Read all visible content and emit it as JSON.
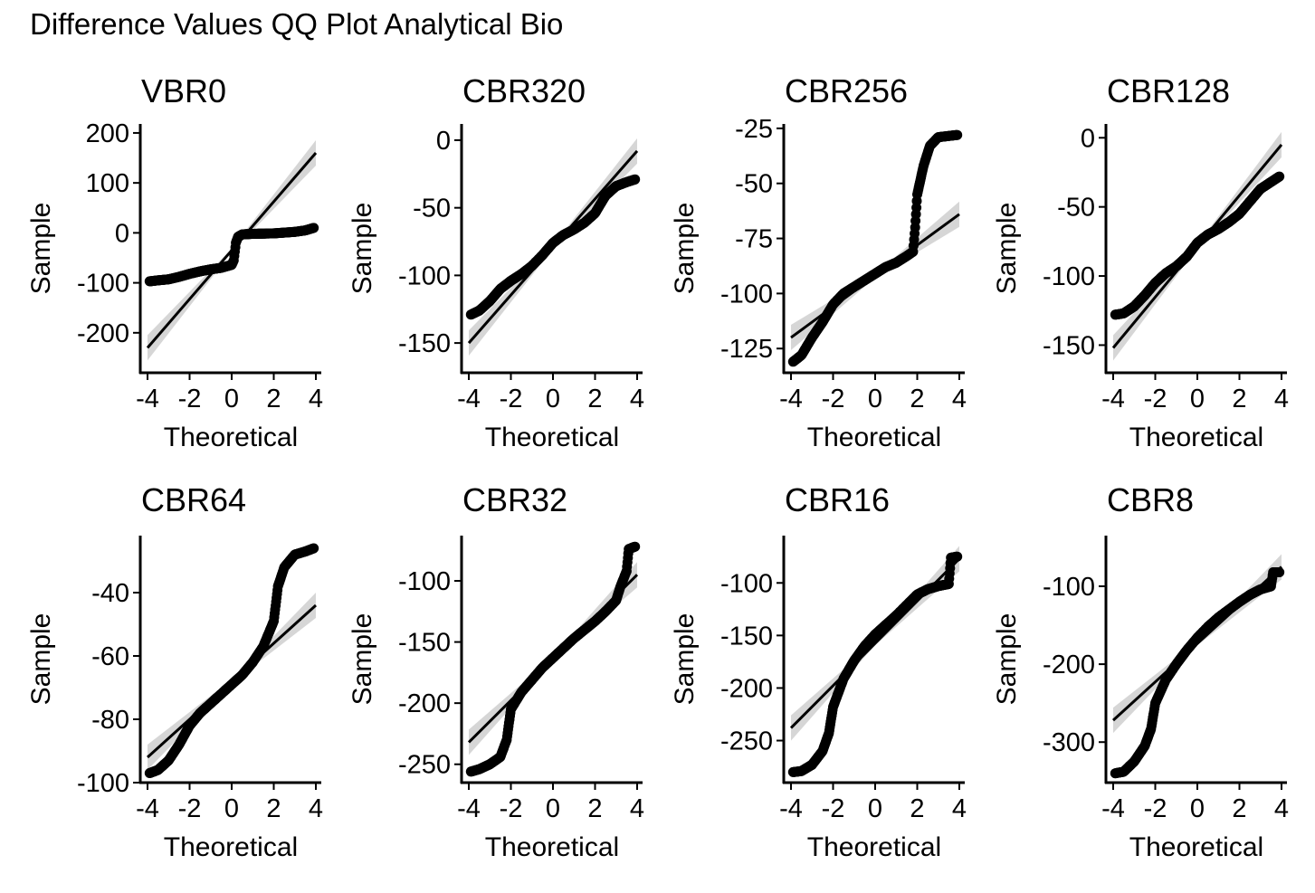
{
  "figure": {
    "title": "Difference Values QQ Plot Analytical Bio"
  },
  "chart_data": [
    {
      "type": "scatter",
      "title": "VBR0",
      "xlabel": "Theoretical",
      "ylabel": "Sample",
      "xlim": [
        -4,
        4
      ],
      "ylim": [
        -280,
        218
      ],
      "xticks": [
        -4,
        -2,
        0,
        2,
        4
      ],
      "yticks": [
        -200,
        -100,
        0,
        100,
        200
      ],
      "reference_line": {
        "x": [
          -4,
          4
        ],
        "y": [
          -230,
          160
        ]
      },
      "points": [
        [
          -3.9,
          -97
        ],
        [
          -3.5,
          -95
        ],
        [
          -3,
          -93
        ],
        [
          -2.5,
          -88
        ],
        [
          -2,
          -82
        ],
        [
          -1.5,
          -77
        ],
        [
          -1,
          -73
        ],
        [
          -0.5,
          -70
        ],
        [
          0,
          -64
        ],
        [
          0.1,
          -55
        ],
        [
          0.2,
          -20
        ],
        [
          0.3,
          -8
        ],
        [
          0.5,
          -3
        ],
        [
          1,
          -2
        ],
        [
          2,
          -1
        ],
        [
          3,
          2
        ],
        [
          3.5,
          5
        ],
        [
          3.9,
          10
        ]
      ],
      "grid": false,
      "legend": "none"
    },
    {
      "type": "scatter",
      "title": "CBR320",
      "xlabel": "Theoretical",
      "ylabel": "Sample",
      "xlim": [
        -4,
        4
      ],
      "ylim": [
        -172,
        12
      ],
      "xticks": [
        -4,
        -2,
        0,
        2,
        4
      ],
      "yticks": [
        -150,
        -100,
        -50,
        0
      ],
      "reference_line": {
        "x": [
          -4,
          4
        ],
        "y": [
          -150,
          -8
        ]
      },
      "points": [
        [
          -3.9,
          -129
        ],
        [
          -3.5,
          -126
        ],
        [
          -3,
          -119
        ],
        [
          -2.5,
          -110
        ],
        [
          -2,
          -104
        ],
        [
          -1.5,
          -99
        ],
        [
          -1,
          -93
        ],
        [
          -0.5,
          -85
        ],
        [
          0,
          -76
        ],
        [
          0.5,
          -70
        ],
        [
          1,
          -66
        ],
        [
          1.5,
          -61
        ],
        [
          2,
          -54
        ],
        [
          2.5,
          -41
        ],
        [
          3,
          -34
        ],
        [
          3.5,
          -31
        ],
        [
          3.9,
          -29
        ]
      ],
      "grid": false,
      "legend": "none"
    },
    {
      "type": "scatter",
      "title": "CBR256",
      "xlabel": "Theoretical",
      "ylabel": "Sample",
      "xlim": [
        -4,
        4
      ],
      "ylim": [
        -136,
        -23
      ],
      "xticks": [
        -4,
        -2,
        0,
        2,
        4
      ],
      "yticks": [
        -125,
        -100,
        -75,
        -50,
        -25
      ],
      "reference_line": {
        "x": [
          -4,
          4
        ],
        "y": [
          -120,
          -64
        ]
      },
      "points": [
        [
          -3.9,
          -131
        ],
        [
          -3.5,
          -128
        ],
        [
          -3,
          -120
        ],
        [
          -2.5,
          -113
        ],
        [
          -2,
          -105
        ],
        [
          -1.5,
          -100
        ],
        [
          -1,
          -97
        ],
        [
          -0.5,
          -94
        ],
        [
          0,
          -91
        ],
        [
          0.5,
          -88
        ],
        [
          1,
          -86
        ],
        [
          1.5,
          -83
        ],
        [
          1.8,
          -81
        ],
        [
          1.9,
          -70
        ],
        [
          2,
          -55
        ],
        [
          2.3,
          -42
        ],
        [
          2.6,
          -33
        ],
        [
          3,
          -29
        ],
        [
          3.9,
          -28
        ]
      ],
      "grid": false,
      "legend": "none"
    },
    {
      "type": "scatter",
      "title": "CBR128",
      "xlabel": "Theoretical",
      "ylabel": "Sample",
      "xlim": [
        -4,
        4
      ],
      "ylim": [
        -170,
        10
      ],
      "xticks": [
        -4,
        -2,
        0,
        2,
        4
      ],
      "yticks": [
        -150,
        -100,
        -50,
        0
      ],
      "reference_line": {
        "x": [
          -4,
          4
        ],
        "y": [
          -152,
          -5
        ]
      },
      "points": [
        [
          -3.9,
          -128
        ],
        [
          -3.5,
          -127
        ],
        [
          -3,
          -122
        ],
        [
          -2.5,
          -114
        ],
        [
          -2,
          -105
        ],
        [
          -1.5,
          -98
        ],
        [
          -1,
          -93
        ],
        [
          -0.5,
          -86
        ],
        [
          0,
          -76
        ],
        [
          0.5,
          -70
        ],
        [
          1,
          -66
        ],
        [
          1.5,
          -61
        ],
        [
          2,
          -55
        ],
        [
          2.5,
          -46
        ],
        [
          3,
          -37
        ],
        [
          3.5,
          -32
        ],
        [
          3.9,
          -28
        ]
      ],
      "grid": false,
      "legend": "none"
    },
    {
      "type": "scatter",
      "title": "CBR64",
      "xlabel": "Theoretical",
      "ylabel": "Sample",
      "xlim": [
        -4,
        4
      ],
      "ylim": [
        -100,
        -22
      ],
      "xticks": [
        -4,
        -2,
        0,
        2,
        4
      ],
      "yticks": [
        -100,
        -80,
        -60,
        -40
      ],
      "reference_line": {
        "x": [
          -4,
          4
        ],
        "y": [
          -92,
          -44
        ]
      },
      "points": [
        [
          -3.9,
          -97
        ],
        [
          -3.5,
          -96
        ],
        [
          -3,
          -93
        ],
        [
          -2.5,
          -88
        ],
        [
          -2,
          -82
        ],
        [
          -1.5,
          -78
        ],
        [
          -1,
          -75
        ],
        [
          -0.5,
          -72
        ],
        [
          0,
          -69
        ],
        [
          0.5,
          -66
        ],
        [
          1,
          -62
        ],
        [
          1.5,
          -57
        ],
        [
          2,
          -49
        ],
        [
          2.2,
          -38
        ],
        [
          2.5,
          -32
        ],
        [
          3,
          -28
        ],
        [
          3.5,
          -27
        ],
        [
          3.9,
          -26
        ]
      ],
      "grid": false,
      "legend": "none"
    },
    {
      "type": "scatter",
      "title": "CBR32",
      "xlabel": "Theoretical",
      "ylabel": "Sample",
      "xlim": [
        -4,
        4
      ],
      "ylim": [
        -265,
        -63
      ],
      "xticks": [
        -4,
        -2,
        0,
        2,
        4
      ],
      "yticks": [
        -250,
        -200,
        -150,
        -100
      ],
      "reference_line": {
        "x": [
          -4,
          4
        ],
        "y": [
          -232,
          -95
        ]
      },
      "points": [
        [
          -3.9,
          -256
        ],
        [
          -3.5,
          -254
        ],
        [
          -3,
          -250
        ],
        [
          -2.5,
          -244
        ],
        [
          -2.2,
          -230
        ],
        [
          -2,
          -205
        ],
        [
          -1.5,
          -191
        ],
        [
          -1,
          -181
        ],
        [
          -0.5,
          -171
        ],
        [
          0,
          -163
        ],
        [
          0.5,
          -155
        ],
        [
          1,
          -147
        ],
        [
          1.5,
          -140
        ],
        [
          2,
          -133
        ],
        [
          2.5,
          -125
        ],
        [
          3,
          -116
        ],
        [
          3.2,
          -105
        ],
        [
          3.5,
          -92
        ],
        [
          3.6,
          -74
        ],
        [
          3.9,
          -72
        ]
      ],
      "grid": false,
      "legend": "none"
    },
    {
      "type": "scatter",
      "title": "CBR16",
      "xlabel": "Theoretical",
      "ylabel": "Sample",
      "xlim": [
        -4,
        4
      ],
      "ylim": [
        -290,
        -55
      ],
      "xticks": [
        -4,
        -2,
        0,
        2,
        4
      ],
      "yticks": [
        -250,
        -200,
        -150,
        -100
      ],
      "reference_line": {
        "x": [
          -4,
          4
        ],
        "y": [
          -238,
          -77
        ]
      },
      "points": [
        [
          -3.9,
          -280
        ],
        [
          -3.5,
          -279
        ],
        [
          -3,
          -273
        ],
        [
          -2.5,
          -260
        ],
        [
          -2.2,
          -243
        ],
        [
          -2,
          -218
        ],
        [
          -1.5,
          -191
        ],
        [
          -1,
          -174
        ],
        [
          -0.5,
          -160
        ],
        [
          0,
          -149
        ],
        [
          0.5,
          -140
        ],
        [
          1,
          -131
        ],
        [
          1.5,
          -121
        ],
        [
          2,
          -111
        ],
        [
          2.5,
          -106
        ],
        [
          3,
          -103
        ],
        [
          3.5,
          -101
        ],
        [
          3.6,
          -76
        ],
        [
          3.9,
          -75
        ]
      ],
      "grid": false,
      "legend": "none"
    },
    {
      "type": "scatter",
      "title": "CBR8",
      "xlabel": "Theoretical",
      "ylabel": "Sample",
      "xlim": [
        -4,
        4
      ],
      "ylim": [
        -352,
        -35
      ],
      "xticks": [
        -4,
        -2,
        0,
        2,
        4
      ],
      "yticks": [
        -300,
        -200,
        -100
      ],
      "reference_line": {
        "x": [
          -4,
          4
        ],
        "y": [
          -272,
          -75
        ]
      },
      "points": [
        [
          -3.9,
          -340
        ],
        [
          -3.5,
          -338
        ],
        [
          -3,
          -325
        ],
        [
          -2.5,
          -305
        ],
        [
          -2.2,
          -283
        ],
        [
          -2,
          -250
        ],
        [
          -1.5,
          -220
        ],
        [
          -1,
          -200
        ],
        [
          -0.5,
          -182
        ],
        [
          0,
          -166
        ],
        [
          0.5,
          -152
        ],
        [
          1,
          -140
        ],
        [
          1.5,
          -130
        ],
        [
          2,
          -120
        ],
        [
          2.5,
          -111
        ],
        [
          3,
          -104
        ],
        [
          3.5,
          -100
        ],
        [
          3.6,
          -82
        ],
        [
          3.9,
          -82
        ]
      ],
      "grid": false,
      "legend": "none"
    }
  ]
}
